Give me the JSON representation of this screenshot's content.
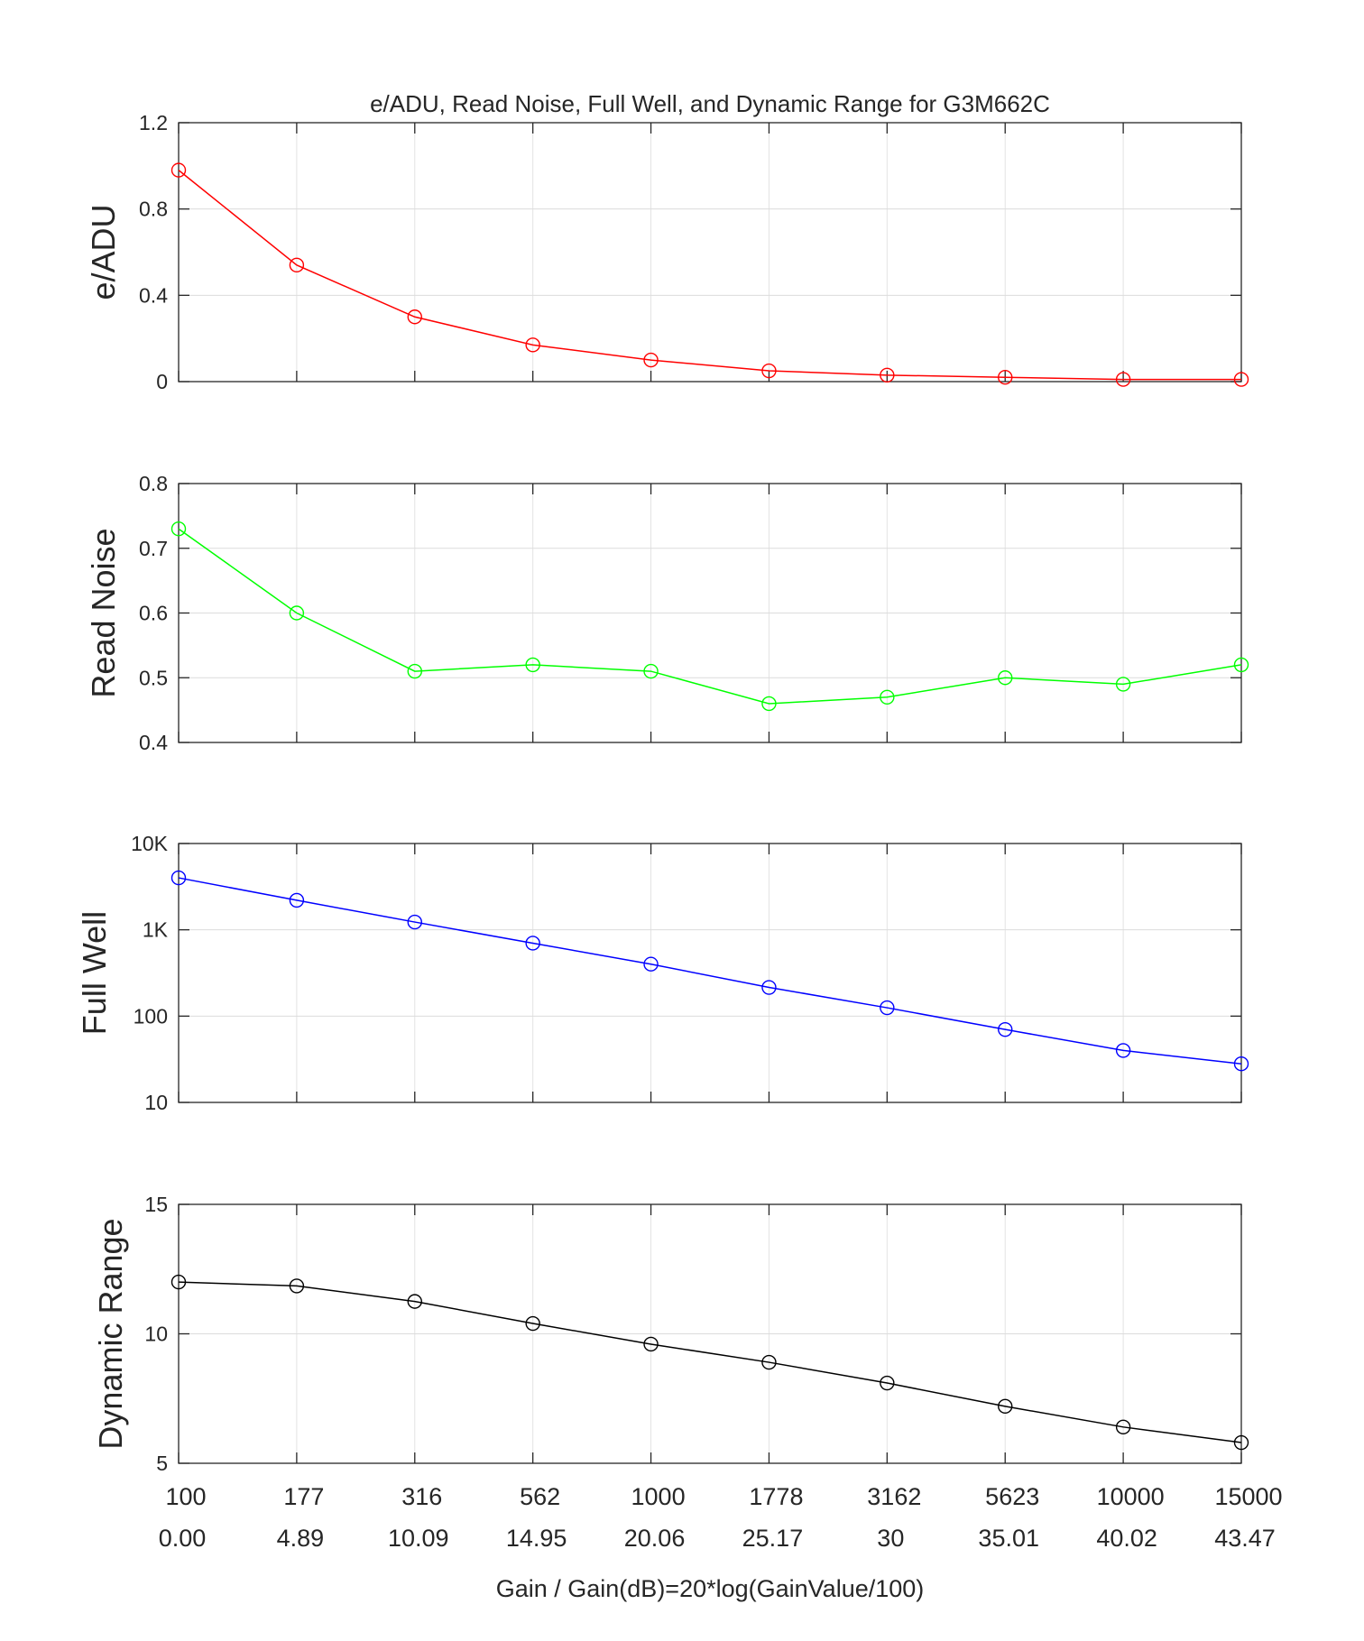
{
  "chart_data": {
    "type": "line",
    "title": "e/ADU, Read Noise, Full Well, and Dynamic Range for G3M662C",
    "xlabel": "Gain / Gain(dB)=20*log(GainValue/100)",
    "x_tick_labels_gain": [
      "100",
      "177",
      "316",
      "562",
      "1000",
      "1778",
      "3162",
      "5623",
      "10000",
      "15000"
    ],
    "x_tick_labels_db": [
      "0.00",
      "4.89",
      "10.09",
      "14.95",
      "20.06",
      "25.17",
      "30",
      "35.01",
      "40.02",
      "43.47"
    ],
    "grid": true,
    "panels": [
      {
        "ylabel": "e/ADU",
        "color": "#ff0000",
        "scale": "linear",
        "ylim": [
          0,
          1.2
        ],
        "yticks": [
          0,
          0.4,
          0.8,
          1.2
        ],
        "ytick_labels": [
          "0",
          "0.4",
          "0.8",
          "1.2"
        ],
        "values": [
          0.98,
          0.54,
          0.3,
          0.17,
          0.1,
          0.05,
          0.03,
          0.02,
          0.01,
          0.01
        ]
      },
      {
        "ylabel": "Read Noise",
        "color": "#00ff00",
        "scale": "linear",
        "ylim": [
          0.4,
          0.8
        ],
        "yticks": [
          0.4,
          0.5,
          0.6,
          0.7,
          0.8
        ],
        "ytick_labels": [
          "0.4",
          "0.5",
          "0.6",
          "0.7",
          "0.8"
        ],
        "values": [
          0.73,
          0.6,
          0.51,
          0.52,
          0.51,
          0.46,
          0.47,
          0.5,
          0.49,
          0.52
        ]
      },
      {
        "ylabel": "Full Well",
        "color": "#0000ff",
        "scale": "log",
        "ylim": [
          10,
          10000
        ],
        "yticks": [
          10,
          100,
          1000,
          10000
        ],
        "ytick_labels": [
          "10",
          "100",
          "1K",
          "10K"
        ],
        "values": [
          4000,
          2200,
          1230,
          700,
          400,
          215,
          125,
          70,
          40,
          28
        ]
      },
      {
        "ylabel": "Dynamic Range",
        "color": "#000000",
        "scale": "linear",
        "ylim": [
          5,
          15
        ],
        "yticks": [
          5,
          10,
          15
        ],
        "ytick_labels": [
          "5",
          "10",
          "15"
        ],
        "values": [
          12.0,
          11.85,
          11.25,
          10.4,
          9.6,
          8.9,
          8.1,
          7.2,
          6.4,
          5.8
        ]
      }
    ]
  }
}
